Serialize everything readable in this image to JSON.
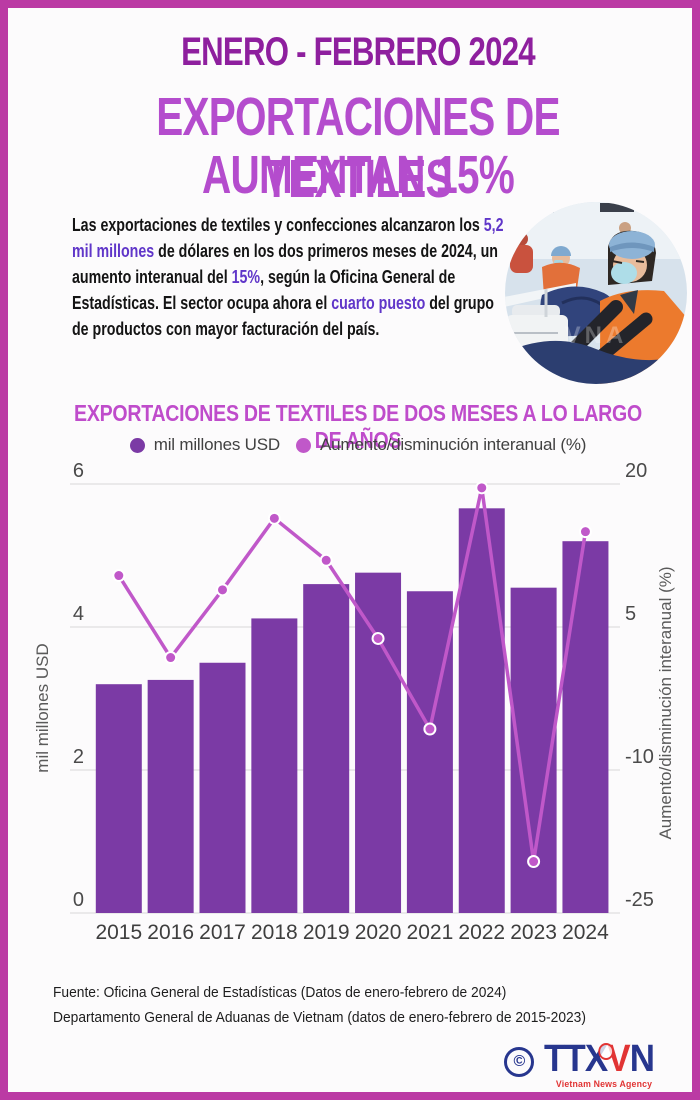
{
  "theme": {
    "border_color": "#bb3aa4",
    "background": "#fcfbfc",
    "subtitle_color": "#8e1f9e",
    "title_color": "#b44ccd",
    "chart_title_color": "#bf4ccb",
    "highlight_color": "#6036c9",
    "bar_color": "#7b3aa5",
    "line_color": "#c058c9",
    "logo_blue": "#27368e",
    "logo_red": "#e13434"
  },
  "header": {
    "subtitle": "ENERO - FEBRERO 2024",
    "title_line1": "EXPORTACIONES DE TEXTILES",
    "title_line2": "AUMENTAN 15%"
  },
  "intro": {
    "segments": [
      {
        "t": "Las exportaciones de textiles y confecciones alcanzaron los ",
        "hl": false
      },
      {
        "t": "5,2 mil millones",
        "hl": true
      },
      {
        "t": " de dólares en los dos primeros meses de 2024, un aumento interanual del ",
        "hl": false
      },
      {
        "t": "15%",
        "hl": true
      },
      {
        "t": ", según la Oficina General de Estadísticas. El sector ocupa ahora el ",
        "hl": false
      },
      {
        "t": "cuarto puesto",
        "hl": true
      },
      {
        "t": " del grupo de productos con mayor facturación del país.",
        "hl": false
      }
    ]
  },
  "photo": {
    "description": "Trabajadora con mascarilla cosiendo tela azul en una fábrica textil",
    "watermark": "VNA"
  },
  "chart": {
    "title": "EXPORTACIONES DE TEXTILES DE DOS MESES A LO LARGO DE AÑOS",
    "legend": [
      {
        "label": "mil millones USD",
        "color": "#7b3aa5"
      },
      {
        "label": "Aumento/disminución interanual (%)",
        "color": "#c058c9"
      }
    ]
  },
  "chart_data": {
    "type": "bar+line",
    "categories": [
      "2015",
      "2016",
      "2017",
      "2018",
      "2019",
      "2020",
      "2021",
      "2022",
      "2023",
      "2024"
    ],
    "series": [
      {
        "name": "mil millones USD",
        "type": "bar",
        "axis": "left",
        "color": "#7b3aa5",
        "values": [
          3.2,
          3.26,
          3.5,
          4.12,
          4.6,
          4.76,
          4.5,
          5.66,
          4.55,
          5.2
        ]
      },
      {
        "name": "Aumento/disminución interanual (%)",
        "type": "line",
        "axis": "right",
        "color": "#c058c9",
        "values": [
          10.4,
          1.8,
          8.9,
          16.4,
          12.0,
          3.8,
          -5.7,
          19.6,
          -19.6,
          15.0
        ]
      }
    ],
    "left_axis": {
      "label": "mil millones USD",
      "range": [
        0,
        6
      ],
      "ticks": [
        0,
        2,
        4,
        6
      ]
    },
    "right_axis": {
      "label": "Aumento/disminución interanual (%)",
      "range": [
        -25,
        20
      ],
      "ticks": [
        -25,
        -10,
        5,
        20
      ]
    },
    "grid": true,
    "legend_position": "top"
  },
  "footer": {
    "source_line1": "Fuente: Oficina General de Estadísticas (Datos de enero-febrero de 2024)",
    "source_line2": "Departamento General de Aduanas de Vietnam (datos de enero-febrero de 2015-2023)",
    "logo": {
      "copyright": "©",
      "ttx": "TTX",
      "v": "V",
      "n": "N",
      "caption": "Vietnam News Agency"
    }
  }
}
